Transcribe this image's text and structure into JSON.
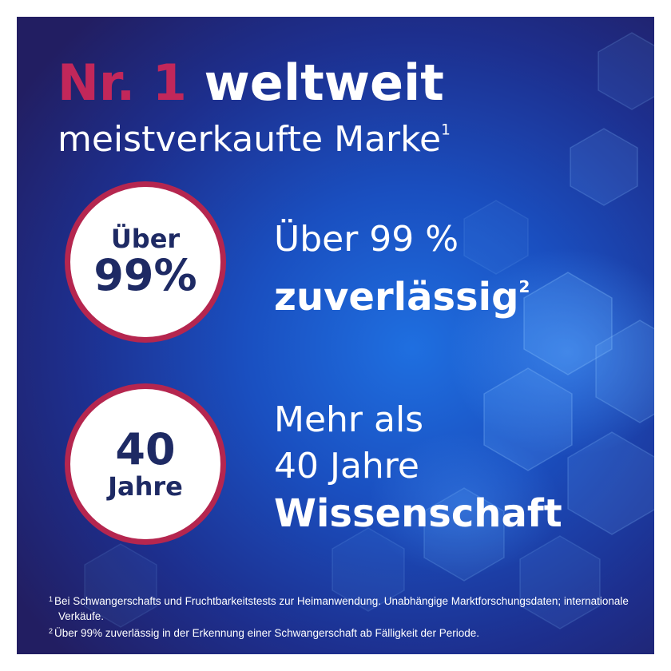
{
  "brand": {
    "accent_color": "#c2275a",
    "ring_color": "#b5264f",
    "navy_color": "#1e2a64",
    "background_dark": "#221e62",
    "background_light": "#1f6fe0"
  },
  "headline": {
    "accent": "Nr. 1",
    "rest": "weltweit",
    "subtitle": "meistverkaufte Marke",
    "subtitle_sup": "1"
  },
  "stats": [
    {
      "badge_line1": "Über",
      "badge_line2": "99%",
      "text_line1": "Über 99 %",
      "text_line2": "zuverlässig",
      "text_sup": "2"
    },
    {
      "badge_line1": "40",
      "badge_line2": "Jahre",
      "text_line1": "Mehr als",
      "text_line2": "40 Jahre",
      "text_line3": "Wissenschaft"
    }
  ],
  "footnotes": [
    {
      "mark": "1",
      "text": "Bei Schwangerschafts und Fruchtbarkeitstests zur Heimanwendung. Unabhängige Marktforschungsdaten; internationale Verkäufe."
    },
    {
      "mark": "2",
      "text": "Über 99% zuverlässig in der Erkennung einer Schwangerschaft ab Fälligkeit der Periode."
    }
  ]
}
